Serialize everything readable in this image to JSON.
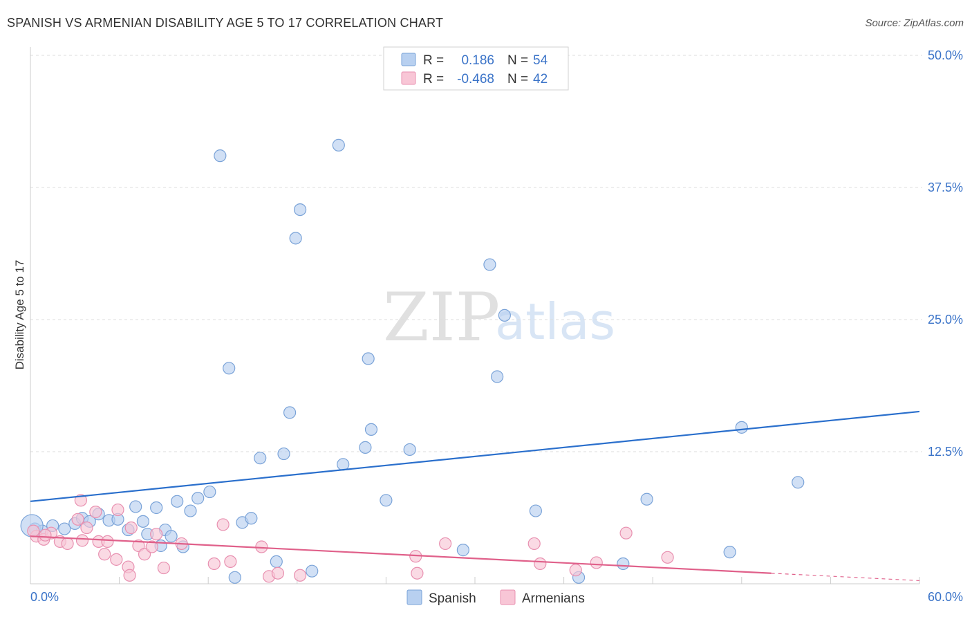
{
  "title": "SPANISH VS ARMENIAN DISABILITY AGE 5 TO 17 CORRELATION CHART",
  "source": "Source: ZipAtlas.com",
  "watermark": {
    "part1": "ZIP",
    "part2": "atlas"
  },
  "legend_top": {
    "rows": [
      {
        "r_label": "R =",
        "r_value": "0.186",
        "n_label": "N =",
        "n_value": "54"
      },
      {
        "r_label": "R =",
        "r_value": "-0.468",
        "n_label": "N =",
        "n_value": "42"
      }
    ]
  },
  "legend_bottom": {
    "items": [
      "Spanish",
      "Armenians"
    ]
  },
  "colors": {
    "spanish_fill": "#b8d0f0",
    "spanish_stroke": "#7aa3d8",
    "spanish_line": "#2a6fcc",
    "armenian_fill": "#f8c6d6",
    "armenian_stroke": "#e890b0",
    "armenian_line": "#e0608a",
    "grid": "#dddddd",
    "tick_text": "#3a73c8"
  },
  "chart_data": {
    "type": "scatter",
    "title": "SPANISH VS ARMENIAN DISABILITY AGE 5 TO 17 CORRELATION CHART",
    "xlabel": "",
    "ylabel": "Disability Age 5 to 17",
    "xlim": [
      0,
      60
    ],
    "ylim": [
      0,
      50
    ],
    "x_tick_labels": [
      "0.0%",
      "60.0%"
    ],
    "y_ticks": [
      12.5,
      25.0,
      37.5,
      50.0
    ],
    "y_tick_labels": [
      "12.5%",
      "25.0%",
      "37.5%",
      "50.0%"
    ],
    "grid": true,
    "series": [
      {
        "name": "Spanish",
        "R": 0.186,
        "N": 54,
        "trend": {
          "x0": 0,
          "y0": 7.8,
          "x1": 60,
          "y1": 16.3
        },
        "points": [
          [
            0.3,
            5.2
          ],
          [
            0.8,
            5.0
          ],
          [
            1.5,
            5.5
          ],
          [
            2.3,
            5.2
          ],
          [
            3.0,
            5.7
          ],
          [
            3.5,
            6.2
          ],
          [
            4.0,
            5.9
          ],
          [
            4.6,
            6.6
          ],
          [
            5.3,
            6.0
          ],
          [
            5.9,
            6.1
          ],
          [
            6.6,
            5.1
          ],
          [
            7.1,
            7.3
          ],
          [
            7.6,
            5.9
          ],
          [
            7.9,
            4.7
          ],
          [
            8.5,
            7.2
          ],
          [
            8.8,
            3.6
          ],
          [
            9.1,
            5.1
          ],
          [
            9.5,
            4.5
          ],
          [
            9.9,
            7.8
          ],
          [
            10.3,
            3.5
          ],
          [
            10.8,
            6.9
          ],
          [
            11.3,
            8.1
          ],
          [
            12.1,
            8.7
          ],
          [
            12.8,
            40.5
          ],
          [
            13.4,
            20.4
          ],
          [
            13.8,
            0.6
          ],
          [
            14.3,
            5.8
          ],
          [
            14.9,
            6.2
          ],
          [
            15.5,
            11.9
          ],
          [
            16.6,
            2.1
          ],
          [
            17.1,
            12.3
          ],
          [
            17.5,
            16.2
          ],
          [
            17.9,
            32.7
          ],
          [
            18.2,
            35.4
          ],
          [
            19.0,
            1.2
          ],
          [
            20.8,
            41.5
          ],
          [
            21.1,
            11.3
          ],
          [
            22.6,
            12.9
          ],
          [
            22.8,
            21.3
          ],
          [
            23.0,
            14.6
          ],
          [
            24.0,
            7.9
          ],
          [
            25.6,
            12.7
          ],
          [
            29.2,
            3.2
          ],
          [
            31.0,
            30.2
          ],
          [
            31.5,
            19.6
          ],
          [
            32.0,
            25.4
          ],
          [
            34.1,
            6.9
          ],
          [
            37.0,
            0.6
          ],
          [
            40.0,
            1.9
          ],
          [
            41.6,
            8.0
          ],
          [
            47.2,
            3.0
          ],
          [
            48.0,
            14.8
          ],
          [
            51.8,
            9.6
          ],
          [
            0.1,
            5.5
          ]
        ]
      },
      {
        "name": "Armenians",
        "R": -0.468,
        "N": 42,
        "trend": {
          "x0": 0,
          "y0": 4.5,
          "x1": 50,
          "y1": 1.0,
          "dash_to_x": 60,
          "dash_to_y": 0.3
        },
        "points": [
          [
            0.4,
            4.5
          ],
          [
            0.9,
            4.2
          ],
          [
            1.4,
            4.8
          ],
          [
            2.0,
            4.0
          ],
          [
            2.5,
            3.8
          ],
          [
            3.2,
            6.1
          ],
          [
            3.4,
            7.9
          ],
          [
            3.5,
            4.1
          ],
          [
            3.8,
            5.3
          ],
          [
            4.4,
            6.8
          ],
          [
            4.6,
            4.0
          ],
          [
            5.0,
            2.8
          ],
          [
            5.2,
            4.0
          ],
          [
            5.8,
            2.3
          ],
          [
            5.9,
            7.0
          ],
          [
            6.6,
            1.6
          ],
          [
            6.7,
            0.8
          ],
          [
            6.8,
            5.3
          ],
          [
            7.3,
            3.6
          ],
          [
            7.7,
            2.8
          ],
          [
            8.2,
            3.5
          ],
          [
            8.5,
            4.7
          ],
          [
            9.0,
            1.5
          ],
          [
            10.2,
            3.8
          ],
          [
            12.4,
            1.9
          ],
          [
            13.0,
            5.6
          ],
          [
            13.5,
            2.1
          ],
          [
            15.6,
            3.5
          ],
          [
            16.1,
            0.7
          ],
          [
            16.7,
            1.0
          ],
          [
            18.2,
            0.8
          ],
          [
            26.0,
            2.6
          ],
          [
            26.1,
            1.0
          ],
          [
            28.0,
            3.8
          ],
          [
            34.0,
            3.8
          ],
          [
            34.4,
            1.9
          ],
          [
            36.8,
            1.3
          ],
          [
            38.2,
            2.0
          ],
          [
            40.2,
            4.8
          ],
          [
            43.0,
            2.5
          ],
          [
            0.2,
            5.0
          ],
          [
            1.0,
            4.6
          ]
        ]
      }
    ]
  }
}
